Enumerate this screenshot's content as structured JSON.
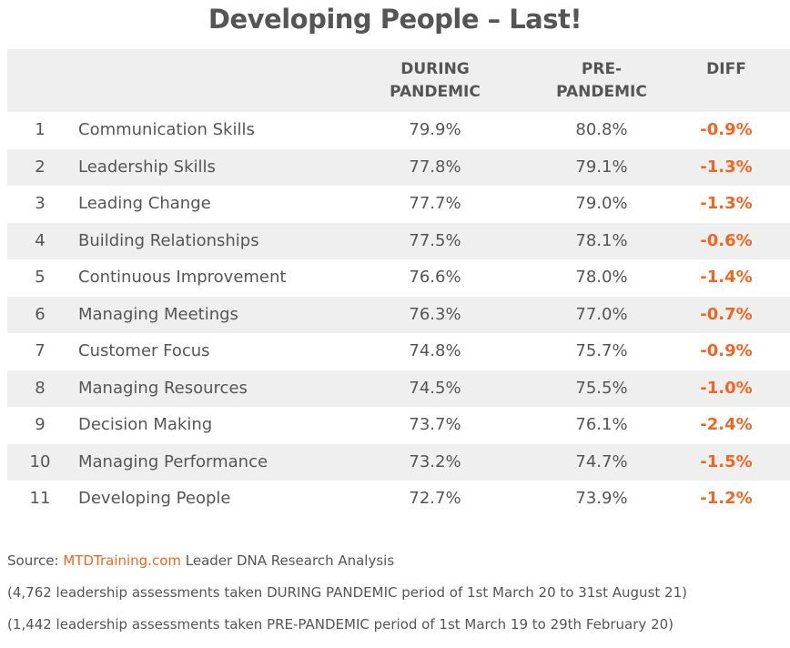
{
  "chart_data": {
    "type": "table",
    "title": "Developing People – Last!",
    "columns": [
      "",
      "",
      "DURING PANDEMIC",
      "PRE-PANDEMIC",
      "DIFF"
    ],
    "header": {
      "during_line1": "DURING",
      "during_line2": "PANDEMIC",
      "pre_line1": "PRE-",
      "pre_line2": "PANDEMIC",
      "diff": "DIFF"
    },
    "rows": [
      {
        "rank": "1",
        "skill": "Communication Skills",
        "during": "79.9%",
        "pre": "80.8%",
        "diff": "-0.9%"
      },
      {
        "rank": "2",
        "skill": "Leadership Skills",
        "during": "77.8%",
        "pre": "79.1%",
        "diff": "-1.3%"
      },
      {
        "rank": "3",
        "skill": "Leading Change",
        "during": "77.7%",
        "pre": "79.0%",
        "diff": "-1.3%"
      },
      {
        "rank": "4",
        "skill": "Building Relationships",
        "during": "77.5%",
        "pre": "78.1%",
        "diff": "-0.6%"
      },
      {
        "rank": "5",
        "skill": "Continuous Improvement",
        "during": "76.6%",
        "pre": "78.0%",
        "diff": "-1.4%"
      },
      {
        "rank": "6",
        "skill": "Managing Meetings",
        "during": "76.3%",
        "pre": "77.0%",
        "diff": "-0.7%"
      },
      {
        "rank": "7",
        "skill": "Customer Focus",
        "during": "74.8%",
        "pre": "75.7%",
        "diff": "-0.9%"
      },
      {
        "rank": "8",
        "skill": "Managing Resources",
        "during": "74.5%",
        "pre": "75.5%",
        "diff": "-1.0%"
      },
      {
        "rank": "9",
        "skill": "Decision Making",
        "during": "73.7%",
        "pre": "76.1%",
        "diff": "-2.4%"
      },
      {
        "rank": "10",
        "skill": "Managing Performance",
        "during": "73.2%",
        "pre": "74.7%",
        "diff": "-1.5%"
      },
      {
        "rank": "11",
        "skill": "Developing People",
        "during": "72.7%",
        "pre": "73.9%",
        "diff": "-1.2%"
      }
    ]
  },
  "notes": {
    "source_prefix": "Source: ",
    "source_link": "MTDTraining.com",
    "source_suffix": " Leader DNA Research Analysis",
    "line2": "(4,762 leadership assessments taken DURING PANDEMIC period of 1st March 20 to 31st August 21)",
    "line3": "(1,442 leadership assessments taken PRE-PANDEMIC period of 1st March 19 to 29th February 20)"
  },
  "colors": {
    "text": "#555555",
    "accent": "#f26522",
    "band": "#efefef"
  }
}
